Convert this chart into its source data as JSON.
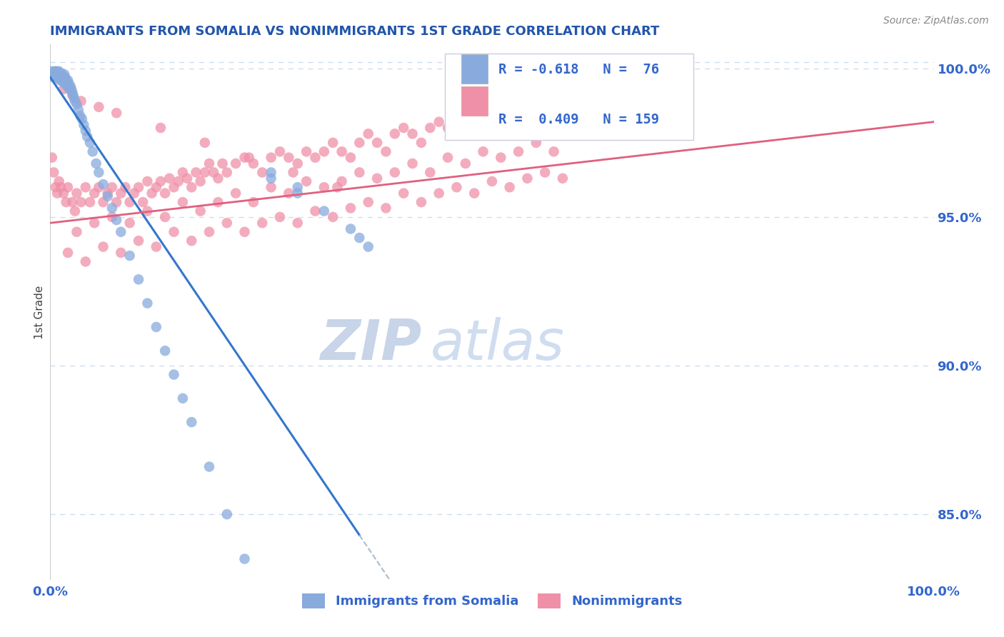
{
  "title": "IMMIGRANTS FROM SOMALIA VS NONIMMIGRANTS 1ST GRADE CORRELATION CHART",
  "source": "Source: ZipAtlas.com",
  "ylabel": "1st Grade",
  "xmin": 0.0,
  "xmax": 1.0,
  "ymin": 0.828,
  "ymax": 1.008,
  "right_yticks": [
    0.85,
    0.9,
    0.95,
    1.0
  ],
  "right_yticklabels": [
    "85.0%",
    "90.0%",
    "95.0%",
    "100.0%"
  ],
  "bottom_legend_labels": [
    "Immigrants from Somalia",
    "Nonimmigrants"
  ],
  "title_color": "#2255aa",
  "source_color": "#888888",
  "axis_color": "#3366cc",
  "scatter_blue_color": "#88aadd",
  "scatter_pink_color": "#f090a8",
  "trend_blue_color": "#3377cc",
  "trend_pink_color": "#e06080",
  "trend_dashed_color": "#aabbcc",
  "watermark_zip_color": "#c8d4e8",
  "watermark_atlas_color": "#d0ddf0",
  "grid_color": "#ccddee",
  "blue_scatter_x": [
    0.002,
    0.003,
    0.004,
    0.005,
    0.005,
    0.006,
    0.006,
    0.007,
    0.007,
    0.008,
    0.008,
    0.009,
    0.009,
    0.01,
    0.01,
    0.011,
    0.011,
    0.012,
    0.012,
    0.013,
    0.013,
    0.014,
    0.014,
    0.015,
    0.015,
    0.016,
    0.016,
    0.017,
    0.018,
    0.018,
    0.019,
    0.02,
    0.02,
    0.021,
    0.022,
    0.023,
    0.024,
    0.025,
    0.026,
    0.027,
    0.028,
    0.03,
    0.032,
    0.034,
    0.036,
    0.038,
    0.04,
    0.042,
    0.045,
    0.048,
    0.052,
    0.055,
    0.06,
    0.065,
    0.07,
    0.075,
    0.08,
    0.09,
    0.1,
    0.11,
    0.12,
    0.13,
    0.14,
    0.15,
    0.16,
    0.18,
    0.2,
    0.22,
    0.25,
    0.28,
    0.31,
    0.34,
    0.35,
    0.36,
    0.28,
    0.25
  ],
  "blue_scatter_y": [
    0.999,
    0.998,
    0.997,
    0.999,
    0.998,
    0.997,
    0.999,
    0.998,
    0.997,
    0.999,
    0.998,
    0.997,
    0.998,
    0.999,
    0.997,
    0.998,
    0.996,
    0.998,
    0.997,
    0.996,
    0.998,
    0.997,
    0.996,
    0.997,
    0.996,
    0.998,
    0.995,
    0.997,
    0.995,
    0.996,
    0.994,
    0.996,
    0.994,
    0.995,
    0.993,
    0.994,
    0.993,
    0.992,
    0.991,
    0.99,
    0.989,
    0.988,
    0.986,
    0.984,
    0.983,
    0.981,
    0.979,
    0.977,
    0.975,
    0.972,
    0.968,
    0.965,
    0.961,
    0.957,
    0.953,
    0.949,
    0.945,
    0.937,
    0.929,
    0.921,
    0.913,
    0.905,
    0.897,
    0.889,
    0.881,
    0.866,
    0.85,
    0.835,
    0.965,
    0.958,
    0.952,
    0.946,
    0.943,
    0.94,
    0.96,
    0.963
  ],
  "pink_scatter_x": [
    0.002,
    0.004,
    0.006,
    0.008,
    0.01,
    0.012,
    0.015,
    0.018,
    0.02,
    0.025,
    0.028,
    0.03,
    0.035,
    0.04,
    0.045,
    0.05,
    0.055,
    0.06,
    0.065,
    0.07,
    0.075,
    0.08,
    0.085,
    0.09,
    0.095,
    0.1,
    0.105,
    0.11,
    0.115,
    0.12,
    0.125,
    0.13,
    0.135,
    0.14,
    0.145,
    0.15,
    0.155,
    0.16,
    0.165,
    0.17,
    0.175,
    0.18,
    0.185,
    0.19,
    0.195,
    0.2,
    0.21,
    0.22,
    0.23,
    0.24,
    0.25,
    0.26,
    0.27,
    0.28,
    0.29,
    0.3,
    0.31,
    0.32,
    0.33,
    0.34,
    0.35,
    0.36,
    0.37,
    0.38,
    0.39,
    0.4,
    0.41,
    0.42,
    0.43,
    0.44,
    0.45,
    0.46,
    0.47,
    0.48,
    0.49,
    0.5,
    0.51,
    0.52,
    0.53,
    0.54,
    0.55,
    0.56,
    0.57,
    0.58,
    0.59,
    0.6,
    0.02,
    0.04,
    0.06,
    0.08,
    0.1,
    0.12,
    0.14,
    0.16,
    0.18,
    0.2,
    0.22,
    0.24,
    0.26,
    0.28,
    0.3,
    0.32,
    0.34,
    0.36,
    0.38,
    0.4,
    0.42,
    0.44,
    0.46,
    0.48,
    0.5,
    0.52,
    0.54,
    0.56,
    0.58,
    0.03,
    0.05,
    0.07,
    0.09,
    0.11,
    0.13,
    0.15,
    0.17,
    0.19,
    0.21,
    0.23,
    0.25,
    0.27,
    0.29,
    0.31,
    0.33,
    0.35,
    0.37,
    0.39,
    0.41,
    0.43,
    0.45,
    0.47,
    0.49,
    0.51,
    0.53,
    0.55,
    0.57,
    0.015,
    0.025,
    0.035,
    0.055,
    0.075,
    0.125,
    0.175,
    0.225,
    0.275,
    0.325
  ],
  "pink_scatter_y": [
    0.97,
    0.965,
    0.96,
    0.958,
    0.962,
    0.96,
    0.958,
    0.955,
    0.96,
    0.955,
    0.952,
    0.958,
    0.955,
    0.96,
    0.955,
    0.958,
    0.96,
    0.955,
    0.958,
    0.96,
    0.955,
    0.958,
    0.96,
    0.955,
    0.958,
    0.96,
    0.955,
    0.962,
    0.958,
    0.96,
    0.962,
    0.958,
    0.963,
    0.96,
    0.962,
    0.965,
    0.963,
    0.96,
    0.965,
    0.962,
    0.965,
    0.968,
    0.965,
    0.963,
    0.968,
    0.965,
    0.968,
    0.97,
    0.968,
    0.965,
    0.97,
    0.972,
    0.97,
    0.968,
    0.972,
    0.97,
    0.972,
    0.975,
    0.972,
    0.97,
    0.975,
    0.978,
    0.975,
    0.972,
    0.978,
    0.98,
    0.978,
    0.975,
    0.98,
    0.982,
    0.98,
    0.978,
    0.982,
    0.985,
    0.982,
    0.98,
    0.985,
    0.988,
    0.985,
    0.982,
    0.988,
    0.99,
    0.988,
    0.985,
    0.99,
    0.992,
    0.938,
    0.935,
    0.94,
    0.938,
    0.942,
    0.94,
    0.945,
    0.942,
    0.945,
    0.948,
    0.945,
    0.948,
    0.95,
    0.948,
    0.952,
    0.95,
    0.953,
    0.955,
    0.953,
    0.958,
    0.955,
    0.958,
    0.96,
    0.958,
    0.962,
    0.96,
    0.963,
    0.965,
    0.963,
    0.945,
    0.948,
    0.95,
    0.948,
    0.952,
    0.95,
    0.955,
    0.952,
    0.955,
    0.958,
    0.955,
    0.96,
    0.958,
    0.962,
    0.96,
    0.962,
    0.965,
    0.963,
    0.965,
    0.968,
    0.965,
    0.97,
    0.968,
    0.972,
    0.97,
    0.972,
    0.975,
    0.972,
    0.993,
    0.991,
    0.989,
    0.987,
    0.985,
    0.98,
    0.975,
    0.97,
    0.965,
    0.96
  ]
}
